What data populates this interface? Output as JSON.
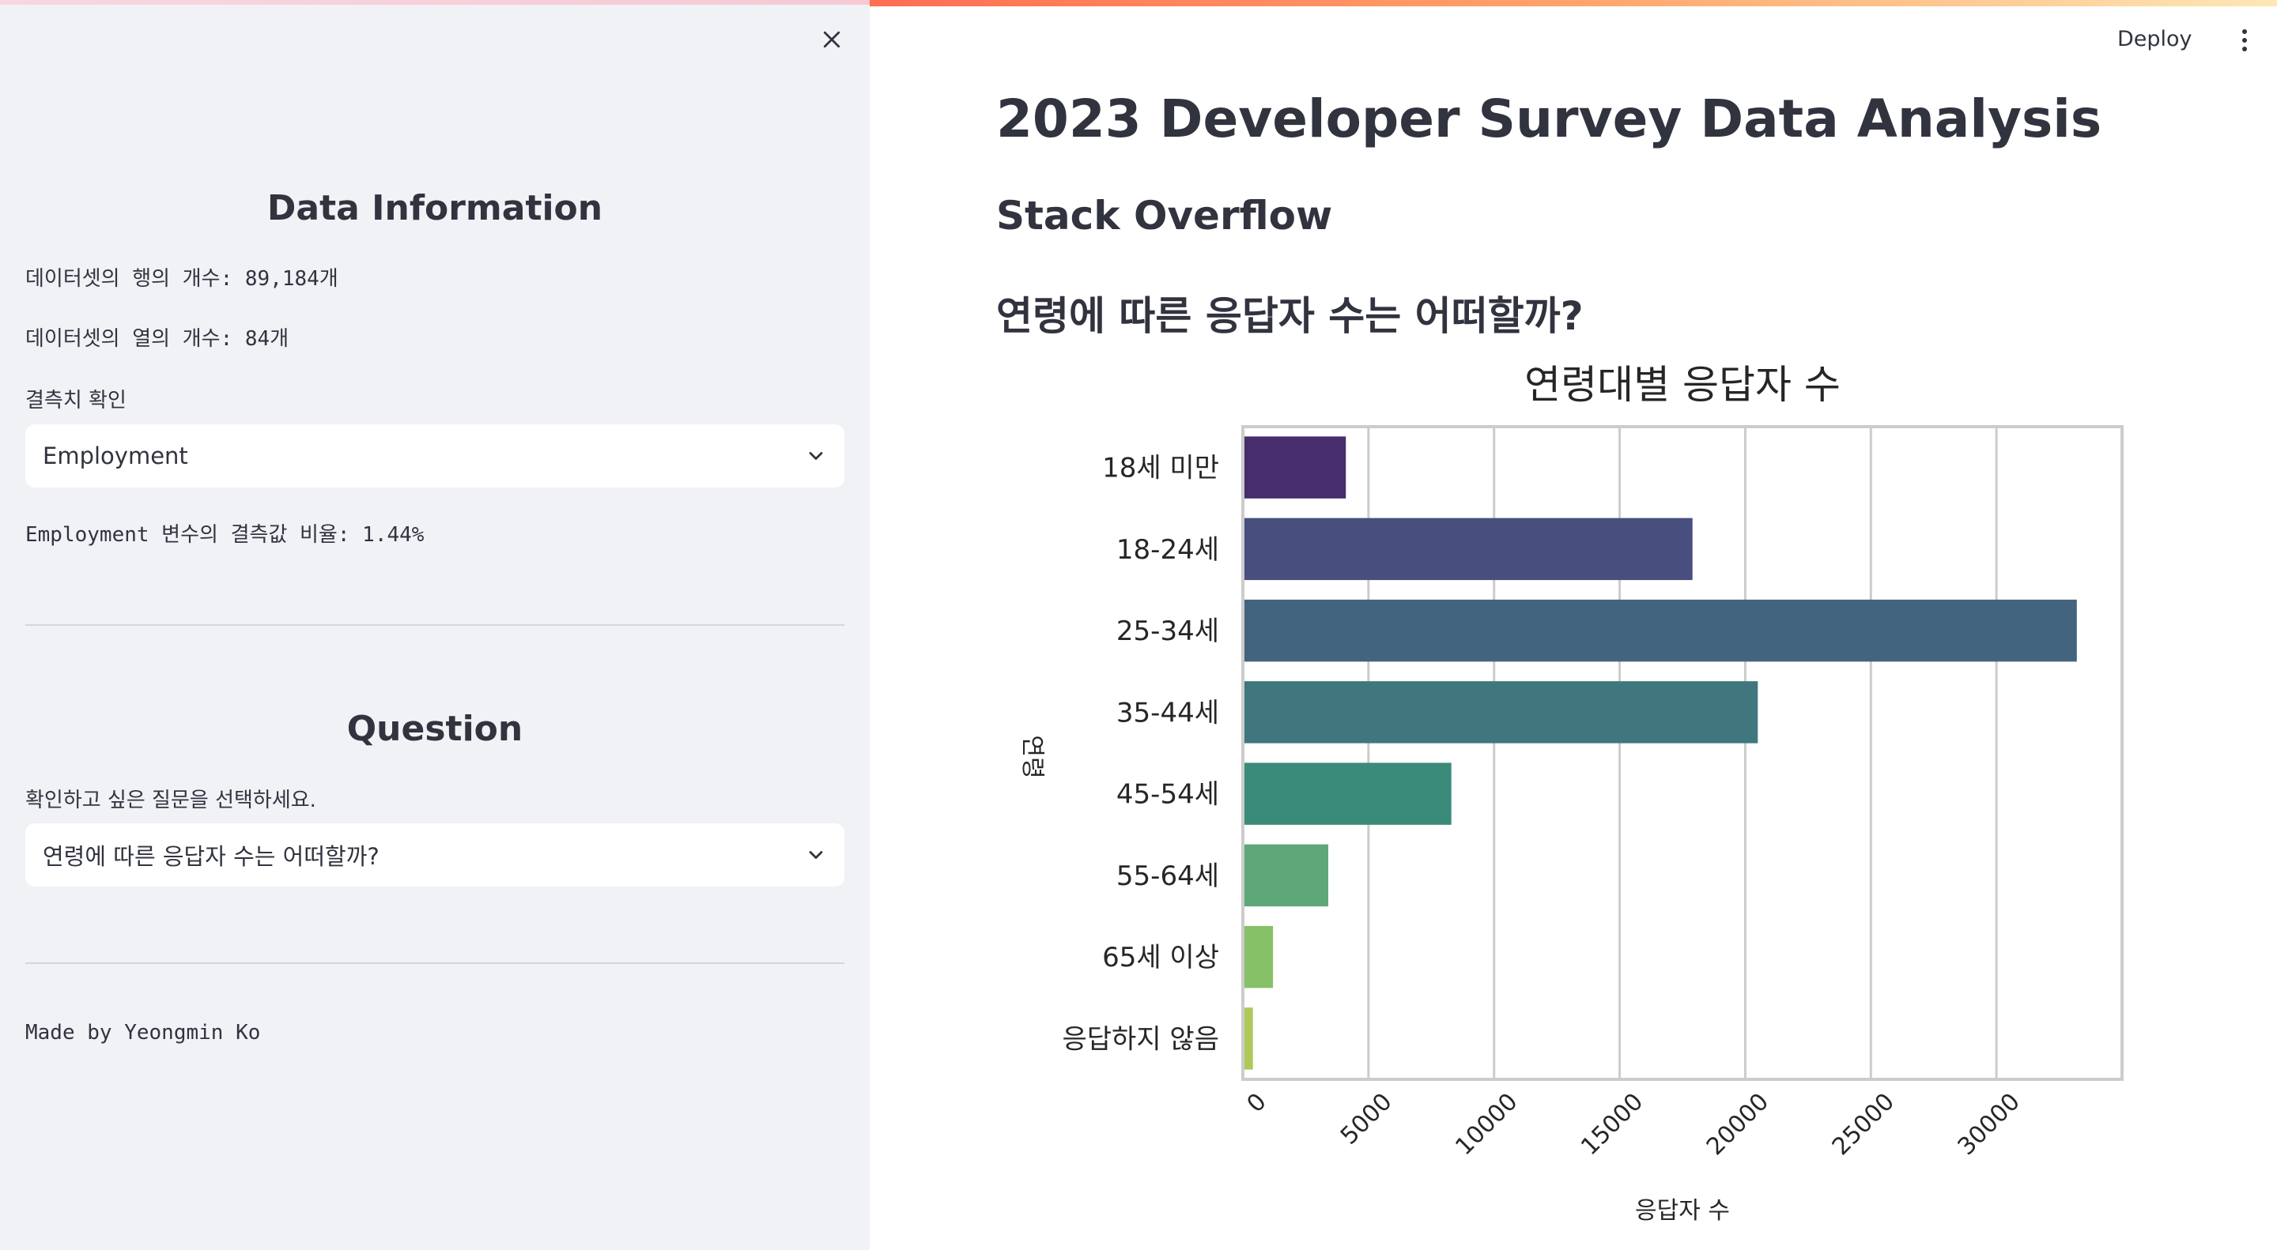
{
  "sidebar": {
    "close_icon": "close-icon",
    "data_info": {
      "heading": "Data Information",
      "rows_text": "데이터셋의 행의 개수: 89,184개",
      "cols_text": "데이터셋의 열의 개수: 84개",
      "missing_label": "결측치 확인",
      "missing_select_value": "Employment",
      "missing_ratio_text": "Employment 변수의 결측값 비율: 1.44%"
    },
    "question": {
      "heading": "Question",
      "prompt": "확인하고 싶은 질문을 선택하세요.",
      "select_value": "연령에 따른 응답자 수는 어떠할까?"
    },
    "footer": "Made by Yeongmin Ko"
  },
  "header": {
    "deploy_label": "Deploy",
    "menu_icon": "kebab-menu-icon"
  },
  "main": {
    "title": "2023 Developer Survey Data Analysis",
    "subtitle": "Stack Overflow",
    "question_title": "연령에 따른 응답자 수는 어떠할까?"
  },
  "colors": {
    "sidebar_bg": "#f0f2f6",
    "text": "#31333f",
    "accent_gradient": [
      "#ff6e52",
      "#ffa46a",
      "#fde7b5"
    ]
  },
  "chart_data": {
    "type": "bar",
    "orientation": "horizontal",
    "title": "연령대별 응답자 수",
    "xlabel": "응답자 수",
    "ylabel": "연령",
    "categories": [
      "18세 미만",
      "18-24세",
      "25-34세",
      "35-44세",
      "45-54세",
      "55-64세",
      "65세 이상",
      "응답하지 않음"
    ],
    "values": [
      4100,
      17900,
      33200,
      20500,
      8300,
      3400,
      1200,
      400
    ],
    "colors": [
      "#472d6b",
      "#484e7e",
      "#43647f",
      "#40777f",
      "#3b8b7a",
      "#5ea778",
      "#86c067",
      "#aec95a"
    ],
    "xlim": [
      0,
      35000
    ],
    "xticks": [
      0,
      5000,
      10000,
      15000,
      20000,
      25000,
      30000
    ],
    "grid": true
  }
}
